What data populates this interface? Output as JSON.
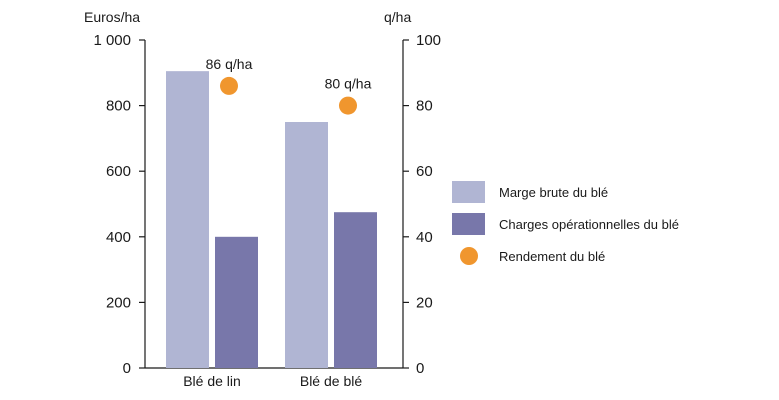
{
  "chart_data": {
    "type": "bar",
    "categories": [
      "Blé de lin",
      "Blé de blé"
    ],
    "left_axis": {
      "unit": "Euros/ha",
      "ylim": [
        0,
        1000
      ],
      "ticks": [
        0,
        200,
        400,
        600,
        800,
        1000
      ],
      "tick_labels": [
        "0",
        "200",
        "400",
        "600",
        "800",
        "1 000"
      ]
    },
    "right_axis": {
      "unit": "q/ha",
      "ylim": [
        0,
        100
      ],
      "ticks": [
        0,
        20,
        40,
        60,
        80,
        100
      ],
      "tick_labels": [
        "0",
        "20",
        "40",
        "60",
        "80",
        "100"
      ]
    },
    "series": [
      {
        "name": "Marge brute du blé",
        "kind": "bar",
        "axis": "left",
        "color": "#b0b5d3",
        "values": [
          905,
          750
        ]
      },
      {
        "name": "Charges opérationnelles du blé",
        "kind": "bar",
        "axis": "left",
        "color": "#7877aa",
        "values": [
          400,
          475
        ]
      },
      {
        "name": "Rendement du blé",
        "kind": "point",
        "axis": "right",
        "color": "#f0962e",
        "values": [
          86,
          80
        ],
        "data_labels": [
          "86 q/ha",
          "80 q/ha"
        ]
      }
    ],
    "grid": false,
    "legend_position": "right"
  }
}
